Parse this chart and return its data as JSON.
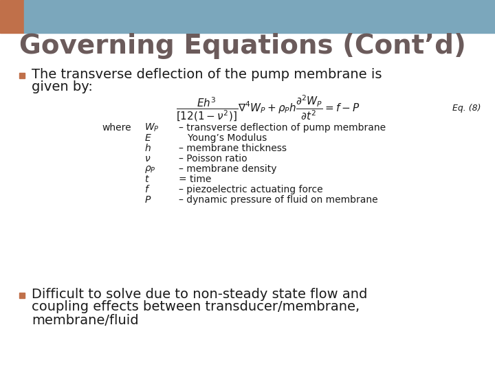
{
  "title": "Governing Equations (Cont’d)",
  "title_color": "#6b5b5b",
  "title_fontsize": 28,
  "title_fontweight": "bold",
  "bg_color": "#ffffff",
  "bar_color": "#7ba7bc",
  "bar_left_color": "#c0704a",
  "bullet_color": "#c0704a",
  "bullet1_text_line1": "The transverse deflection of the pump membrane is",
  "bullet1_text_line2": "given by:",
  "eq_label": "Eq. (8)",
  "where_items": [
    [
      "$W_P$",
      "– transverse deflection of pump membrane"
    ],
    [
      "$E$",
      "   Young’s Modulus"
    ],
    [
      "$h$",
      "– membrane thickness"
    ],
    [
      "$\\nu$",
      "– Poisson ratio"
    ],
    [
      "$\\rho_P$",
      "– membrane density"
    ],
    [
      "$t$",
      "= time"
    ],
    [
      "$f$",
      "– piezoelectric actuating force"
    ],
    [
      "$P$",
      "– dynamic pressure of fluid on membrane"
    ]
  ],
  "bullet2_text_line1": "Difficult to solve due to non-steady state flow and",
  "bullet2_text_line2": "coupling effects between transducer/membrane,",
  "bullet2_text_line3": "membrane/fluid",
  "text_color": "#1a1a1a",
  "body_fontsize": 14,
  "small_fontsize": 10
}
